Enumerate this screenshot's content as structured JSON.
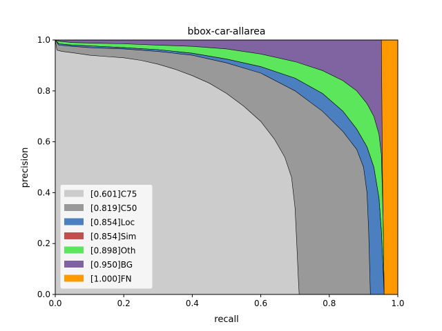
{
  "chart_data": {
    "type": "area",
    "title": "bbox-car-allarea",
    "xlabel": "recall",
    "ylabel": "precision",
    "xlim": [
      0,
      1
    ],
    "ylim": [
      0,
      1
    ],
    "xticks": [
      "0.0",
      "0.2",
      "0.4",
      "0.6",
      "0.8",
      "1.0"
    ],
    "yticks": [
      "0.0",
      "0.2",
      "0.4",
      "0.6",
      "0.8",
      "1.0"
    ],
    "grid": false,
    "legend_position": "lower-left",
    "series": [
      {
        "name": "[0.601]C75",
        "color": "#cccccc",
        "points": [
          [
            0,
            1.0
          ],
          [
            0.005,
            0.96
          ],
          [
            0.02,
            0.955
          ],
          [
            0.05,
            0.95
          ],
          [
            0.1,
            0.94
          ],
          [
            0.15,
            0.935
          ],
          [
            0.2,
            0.93
          ],
          [
            0.25,
            0.92
          ],
          [
            0.3,
            0.905
          ],
          [
            0.35,
            0.885
          ],
          [
            0.4,
            0.86
          ],
          [
            0.45,
            0.83
          ],
          [
            0.5,
            0.79
          ],
          [
            0.55,
            0.74
          ],
          [
            0.6,
            0.68
          ],
          [
            0.64,
            0.61
          ],
          [
            0.67,
            0.54
          ],
          [
            0.69,
            0.46
          ],
          [
            0.7,
            0.34
          ],
          [
            0.705,
            0.2
          ],
          [
            0.71,
            0.05
          ],
          [
            0.712,
            0
          ]
        ]
      },
      {
        "name": "[0.819]C50",
        "color": "#999999",
        "points": [
          [
            0,
            1.0
          ],
          [
            0.01,
            0.98
          ],
          [
            0.05,
            0.975
          ],
          [
            0.1,
            0.97
          ],
          [
            0.2,
            0.965
          ],
          [
            0.3,
            0.955
          ],
          [
            0.4,
            0.94
          ],
          [
            0.5,
            0.91
          ],
          [
            0.6,
            0.87
          ],
          [
            0.7,
            0.8
          ],
          [
            0.78,
            0.72
          ],
          [
            0.84,
            0.64
          ],
          [
            0.88,
            0.57
          ],
          [
            0.9,
            0.5
          ],
          [
            0.91,
            0.4
          ],
          [
            0.915,
            0.25
          ],
          [
            0.918,
            0.1
          ],
          [
            0.92,
            0
          ]
        ]
      },
      {
        "name": "[0.854]Loc",
        "color": "#4c7fbf",
        "points": [
          [
            0,
            1.0
          ],
          [
            0.01,
            0.985
          ],
          [
            0.05,
            0.98
          ],
          [
            0.1,
            0.977
          ],
          [
            0.2,
            0.97
          ],
          [
            0.3,
            0.962
          ],
          [
            0.4,
            0.948
          ],
          [
            0.5,
            0.925
          ],
          [
            0.6,
            0.895
          ],
          [
            0.7,
            0.85
          ],
          [
            0.78,
            0.79
          ],
          [
            0.84,
            0.72
          ],
          [
            0.88,
            0.65
          ],
          [
            0.91,
            0.58
          ],
          [
            0.93,
            0.5
          ],
          [
            0.945,
            0.38
          ],
          [
            0.952,
            0.25
          ],
          [
            0.957,
            0.1
          ],
          [
            0.96,
            0
          ]
        ]
      },
      {
        "name": "[0.854]Sim",
        "color": "#c0504d",
        "points": [
          [
            0,
            1.0
          ],
          [
            0.01,
            0.985
          ],
          [
            0.05,
            0.98
          ],
          [
            0.1,
            0.977
          ],
          [
            0.2,
            0.97
          ],
          [
            0.3,
            0.962
          ],
          [
            0.4,
            0.948
          ],
          [
            0.5,
            0.925
          ],
          [
            0.6,
            0.895
          ],
          [
            0.7,
            0.85
          ],
          [
            0.78,
            0.79
          ],
          [
            0.84,
            0.72
          ],
          [
            0.88,
            0.65
          ],
          [
            0.91,
            0.58
          ],
          [
            0.93,
            0.5
          ],
          [
            0.945,
            0.38
          ],
          [
            0.952,
            0.25
          ],
          [
            0.957,
            0.1
          ],
          [
            0.96,
            0
          ]
        ]
      },
      {
        "name": "[0.898]Oth",
        "color": "#5ce65c",
        "points": [
          [
            0,
            1.0
          ],
          [
            0.01,
            0.995
          ],
          [
            0.05,
            0.99
          ],
          [
            0.1,
            0.988
          ],
          [
            0.2,
            0.985
          ],
          [
            0.3,
            0.98
          ],
          [
            0.4,
            0.975
          ],
          [
            0.5,
            0.965
          ],
          [
            0.6,
            0.945
          ],
          [
            0.7,
            0.915
          ],
          [
            0.78,
            0.88
          ],
          [
            0.84,
            0.84
          ],
          [
            0.88,
            0.8
          ],
          [
            0.91,
            0.75
          ],
          [
            0.93,
            0.7
          ],
          [
            0.945,
            0.63
          ],
          [
            0.952,
            0.55
          ],
          [
            0.957,
            0.3
          ],
          [
            0.96,
            0
          ]
        ]
      },
      {
        "name": "[0.950]BG",
        "color": "#8064a2",
        "points": [
          [
            0,
            1.0
          ],
          [
            0.952,
            1.0
          ],
          [
            0.955,
            0.5
          ],
          [
            0.96,
            0
          ]
        ]
      },
      {
        "name": "[1.000]FN",
        "color": "#ff9900",
        "points": [
          [
            0,
            1.0
          ],
          [
            1.0,
            1.0
          ],
          [
            1.0,
            0
          ]
        ]
      }
    ]
  }
}
